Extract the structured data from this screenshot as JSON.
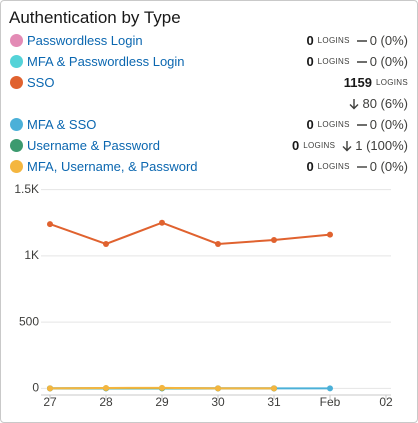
{
  "chart_data": {
    "type": "line",
    "title": "Authentication by Type",
    "count_unit": "LOGINS",
    "categories": [
      "27",
      "28",
      "29",
      "30",
      "31",
      "Feb",
      "02"
    ],
    "series": [
      {
        "name": "Passwordless Login",
        "color": "#e38bb5",
        "total": 0,
        "trend": "flat",
        "change_label": "0 (0%)",
        "values": [
          0,
          0,
          0,
          0,
          0,
          null,
          null
        ]
      },
      {
        "name": "MFA & Passwordless Login",
        "color": "#54d3d8",
        "total": 0,
        "trend": "flat",
        "change_label": "0 (0%)",
        "values": [
          0,
          0,
          0,
          0,
          0,
          null,
          null
        ]
      },
      {
        "name": "SSO",
        "color": "#e0622f",
        "total": 1159,
        "trend": "down",
        "change_label": "80 (6%)",
        "values": [
          1240,
          1090,
          1250,
          1090,
          1120,
          1160,
          null
        ]
      },
      {
        "name": "MFA & SSO",
        "color": "#4bb0d8",
        "total": 0,
        "trend": "flat",
        "change_label": "0 (0%)",
        "values": [
          null,
          null,
          null,
          null,
          0,
          0,
          null
        ]
      },
      {
        "name": "Username & Password",
        "color": "#3c9a6f",
        "total": 0,
        "trend": "down",
        "change_label": "1 (100%)",
        "values": [
          0,
          1,
          1,
          0,
          0,
          null,
          null
        ]
      },
      {
        "name": "MFA, Username, & Password",
        "color": "#f4b63f",
        "total": 0,
        "trend": "flat",
        "change_label": "0 (0%)",
        "values": [
          0,
          3,
          4,
          0,
          0,
          null,
          null
        ]
      }
    ],
    "ylim": [
      -50,
      1550
    ],
    "yticks": [
      0,
      500,
      {
        "value": 1000,
        "label": "1K"
      },
      {
        "value": 1500,
        "label": "1.5K"
      }
    ],
    "grid": true
  }
}
